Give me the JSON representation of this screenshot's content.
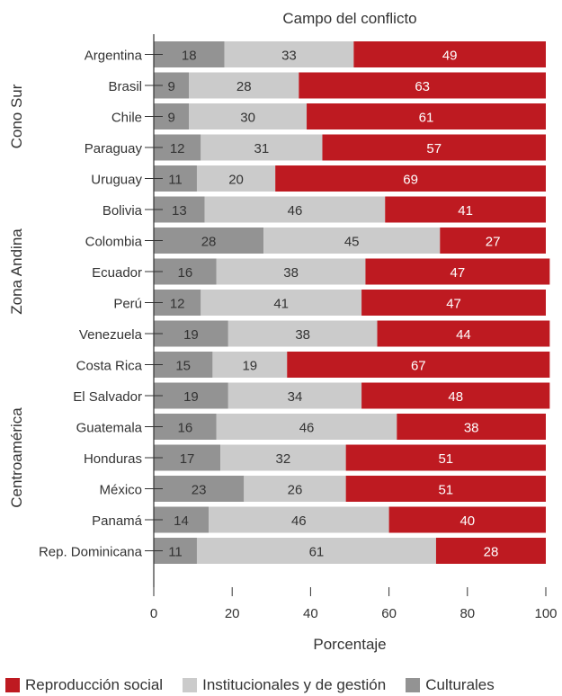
{
  "chart_data": {
    "type": "bar",
    "orientation": "horizontal",
    "stacked": true,
    "title": "Campo del conflicto",
    "xlabel": "Porcentaje",
    "xlim": [
      0,
      100
    ],
    "xticks": [
      "0",
      "20",
      "40",
      "60",
      "80",
      "100"
    ],
    "groups": [
      {
        "name": "Cono Sur",
        "categories": [
          "Argentina",
          "Brasil",
          "Chile",
          "Paraguay",
          "Uruguay"
        ]
      },
      {
        "name": "Zona Andina",
        "categories": [
          "Bolivia",
          "Colombia",
          "Ecuador",
          "Perú",
          "Venezuela"
        ]
      },
      {
        "name": "Centroamérica",
        "categories": [
          "Costa Rica",
          "El Salvador",
          "Guatemala",
          "Honduras",
          "México",
          "Panamá",
          "Rep. Dominicana"
        ]
      }
    ],
    "categories": [
      "Argentina",
      "Brasil",
      "Chile",
      "Paraguay",
      "Uruguay",
      "Bolivia",
      "Colombia",
      "Ecuador",
      "Perú",
      "Venezuela",
      "Costa Rica",
      "El Salvador",
      "Guatemala",
      "Honduras",
      "México",
      "Panamá",
      "Rep. Dominicana"
    ],
    "series": [
      {
        "name": "Culturales",
        "color": "#939393",
        "label_color": "#333333",
        "values": [
          18,
          9,
          9,
          12,
          11,
          13,
          28,
          16,
          12,
          19,
          15,
          19,
          16,
          17,
          23,
          14,
          11
        ]
      },
      {
        "name": "Institucionales y de gestión",
        "color": "#cbcbcb",
        "label_color": "#333333",
        "values": [
          33,
          28,
          30,
          31,
          20,
          46,
          45,
          38,
          41,
          38,
          19,
          34,
          46,
          32,
          26,
          46,
          61
        ]
      },
      {
        "name": "Reproducción social",
        "color": "#be1a21",
        "label_color": "#ffffff",
        "values": [
          49,
          63,
          61,
          57,
          69,
          41,
          27,
          47,
          47,
          44,
          67,
          48,
          38,
          51,
          51,
          40,
          28
        ]
      }
    ],
    "legend": {
      "position": "bottom",
      "order": [
        "Reproducción social",
        "Institucionales y de gestión",
        "Culturales"
      ]
    },
    "grid": false
  }
}
